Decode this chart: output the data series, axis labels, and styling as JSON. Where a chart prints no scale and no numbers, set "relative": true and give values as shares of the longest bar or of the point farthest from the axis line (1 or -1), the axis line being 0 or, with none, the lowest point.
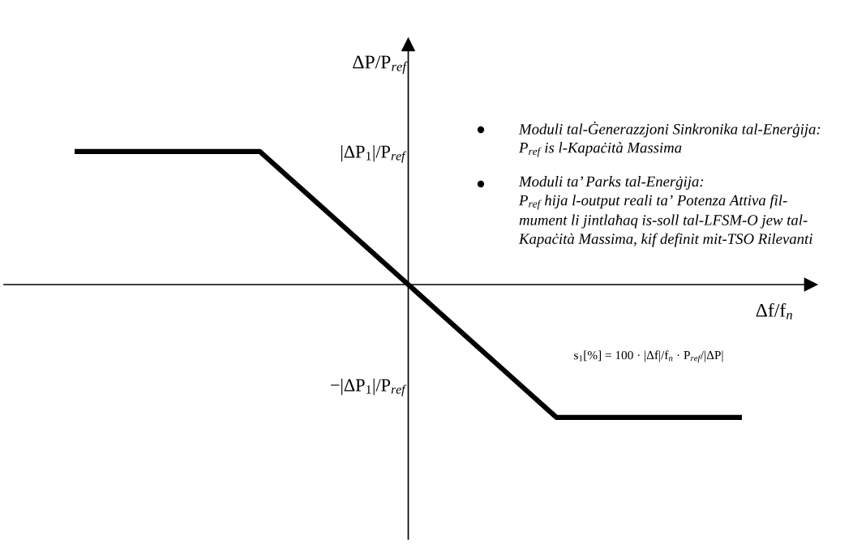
{
  "chart_data": {
    "type": "line",
    "relative": true,
    "xlabel": "Δf/f$_{n}$",
    "ylabel": "ΔP/P$_{ref}$",
    "categories": [
      null,
      null,
      null,
      null,
      null,
      null,
      null,
      null,
      null,
      null,
      null,
      null,
      null,
      null,
      null,
      null,
      null,
      null,
      null
    ],
    "series": [
      {
        "color": "#000000",
        "values": [
          1,
          1,
          1,
          1,
          1,
          1,
          0.75,
          0.5,
          0.25,
          0,
          -0.25,
          -0.5,
          -0.75,
          -1,
          -1,
          -1,
          -1,
          -1,
          -1
        ]
      }
    ],
    "annotations": [
      "|ΔP$_{1}$|/P$_{ref}$",
      "−|ΔP$_{1}$|/P$_{ref}$",
      "Moduli tal-Ġenerazzjoni Sinkronika tal-Enerġija:\nP$_{ref}$ is l-Kapaċità Massima",
      "Moduli ta’ Parks tal-Enerġija:\nP$_{ref}$ hija l-output reali ta’ Potenza Attiva fil-\nmument li jintlaħaq is-soll tal-LFSM-O jew tal-\nKapaċità Massima, kif definit mit-TSO Rilevanti",
      "s$_{1}$[%] = 100 · |Δf|/f$_{n}$ · P$_{ref}$/|ΔP|"
    ]
  }
}
